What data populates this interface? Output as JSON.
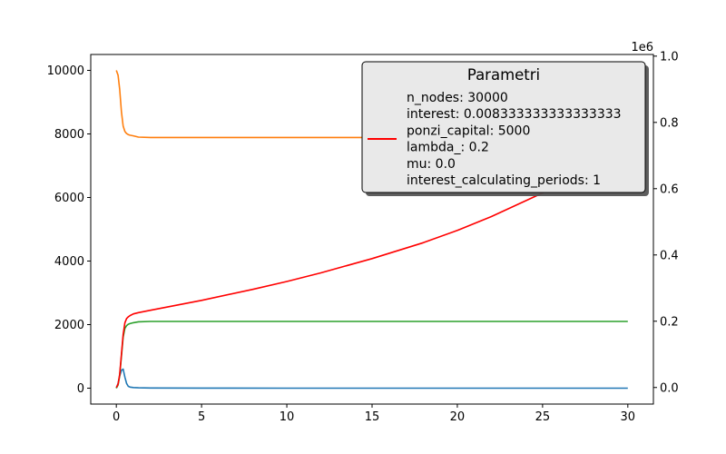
{
  "chart_data": {
    "type": "line",
    "x_ticks": [
      0,
      5,
      10,
      15,
      20,
      25,
      30
    ],
    "xlim": [
      -1.5,
      31.5
    ],
    "left_axis": {
      "ticks": [
        0,
        2000,
        4000,
        6000,
        8000,
        10000
      ],
      "ylim": [
        -500,
        10500
      ]
    },
    "right_axis": {
      "ticks": [
        "0.0",
        "0.2",
        "0.4",
        "0.6",
        "0.8",
        "1.0"
      ],
      "tick_values": [
        0,
        0.2,
        0.4,
        0.6,
        0.8,
        1.0
      ],
      "offset_label": "1e6",
      "ylim": [
        -0.05,
        1.005
      ]
    },
    "series": [
      {
        "axis": "left",
        "color": "#1f77b4",
        "x": [
          0,
          0.1,
          0.2,
          0.3,
          0.4,
          0.5,
          0.6,
          0.7,
          0.8,
          1.0,
          1.3,
          2,
          5,
          10,
          15,
          20,
          25,
          30
        ],
        "y": [
          0,
          150,
          380,
          560,
          600,
          350,
          150,
          60,
          35,
          20,
          10,
          5,
          2,
          1,
          1,
          1,
          1,
          1
        ]
      },
      {
        "axis": "left",
        "color": "#ff7f0e",
        "x": [
          0,
          0.1,
          0.2,
          0.3,
          0.4,
          0.5,
          0.6,
          0.7,
          0.8,
          1.0,
          1.3,
          2,
          5,
          10,
          15,
          20,
          25,
          30
        ],
        "y": [
          10000,
          9850,
          9400,
          8700,
          8250,
          8080,
          8010,
          7980,
          7960,
          7940,
          7900,
          7890,
          7890,
          7890,
          7890,
          7890,
          7890,
          7890
        ]
      },
      {
        "axis": "left",
        "color": "#2ca02c",
        "x": [
          0,
          0.1,
          0.2,
          0.3,
          0.4,
          0.5,
          0.6,
          0.7,
          0.8,
          1.0,
          1.3,
          2,
          5,
          10,
          15,
          20,
          25,
          30
        ],
        "y": [
          0,
          100,
          400,
          1000,
          1600,
          1880,
          1970,
          2010,
          2030,
          2060,
          2090,
          2100,
          2100,
          2100,
          2100,
          2100,
          2100,
          2100
        ]
      },
      {
        "axis": "right",
        "color": "#ff0000",
        "x": [
          0,
          0.1,
          0.2,
          0.3,
          0.4,
          0.5,
          0.6,
          0.7,
          0.8,
          1.0,
          1.3,
          2,
          5,
          8,
          10,
          12,
          15,
          18,
          20,
          22,
          25,
          28,
          30
        ],
        "y": [
          0,
          0.01,
          0.04,
          0.1,
          0.16,
          0.195,
          0.208,
          0.213,
          0.217,
          0.222,
          0.226,
          0.233,
          0.263,
          0.296,
          0.32,
          0.346,
          0.389,
          0.437,
          0.474,
          0.516,
          0.587,
          0.669,
          0.731
        ]
      }
    ],
    "legend": {
      "placement": "top-right",
      "title": "Parametri",
      "line_color": "#ff0000",
      "lines": [
        "n_nodes: 30000",
        "interest: 0.008333333333333333",
        "ponzi_capital: 5000",
        "lambda_: 0.2",
        "mu: 0.0",
        "interest_calculating_periods: 1"
      ]
    }
  }
}
